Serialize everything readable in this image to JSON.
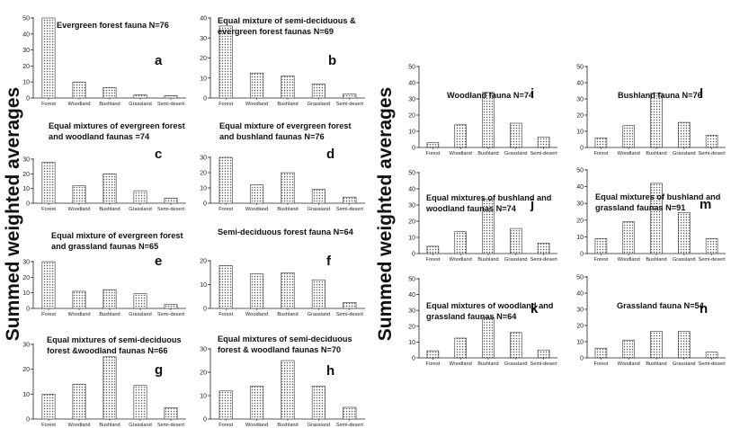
{
  "ylabel_left": "Summed weighted averages",
  "ylabel_right": "Summed weighted averages",
  "categories": [
    "Forest",
    "Woodland",
    "Bushland",
    "Grassland",
    "Semi-desert"
  ],
  "chart_data": [
    {
      "type": "bar",
      "panel": "a",
      "title": [
        "Evergreen forest fauna N=76"
      ],
      "categories": [
        "Forest",
        "Woodland",
        "Bushland",
        "Grassland",
        "Semi-desert"
      ],
      "values": [
        50,
        10,
        6.5,
        2,
        1.5
      ],
      "ylim": [
        0,
        50
      ],
      "yticks": [
        0,
        10,
        20,
        30,
        40,
        50
      ]
    },
    {
      "type": "bar",
      "panel": "b",
      "title": [
        "Equal mixture of semi-deciduous &",
        "evergreen forest faunas N=69"
      ],
      "categories": [
        "Forest",
        "Woodland",
        "Bushland",
        "Grassland",
        "Semi-desert"
      ],
      "values": [
        36,
        12.5,
        11,
        7,
        2
      ],
      "ylim": [
        0,
        40
      ],
      "yticks": [
        0,
        10,
        20,
        30,
        40
      ]
    },
    {
      "type": "bar",
      "panel": "c",
      "title": [
        "Equal mixtures of evergreen  forest",
        "and woodland faunas =74"
      ],
      "categories": [
        "Forest",
        "Woodland",
        "Bushland",
        "Grassland",
        "Semi-desert"
      ],
      "values": [
        28,
        12,
        20,
        8.5,
        3.5
      ],
      "ylim": [
        0,
        30
      ],
      "yticks": [
        0,
        10,
        20,
        30
      ]
    },
    {
      "type": "bar",
      "panel": "d",
      "title": [
        "Equal mixture of evergreen forest",
        "and bushland faunas N=76"
      ],
      "categories": [
        "Forest",
        "Woodland",
        "Bushland",
        "Grassland",
        "Semi-desert"
      ],
      "values": [
        30,
        12,
        20,
        9,
        4
      ],
      "ylim": [
        0,
        30
      ],
      "yticks": [
        0,
        10,
        20,
        30
      ]
    },
    {
      "type": "bar",
      "panel": "e",
      "title": [
        "Equal mixture of evergreen forest",
        "and grassland faunas N=65"
      ],
      "categories": [
        "Forest",
        "Woodland",
        "Bushland",
        "Grassland",
        "Semi-desert"
      ],
      "values": [
        30,
        11,
        12,
        9.5,
        2.5
      ],
      "ylim": [
        0,
        30
      ],
      "yticks": [
        0,
        10,
        20,
        30
      ]
    },
    {
      "type": "bar",
      "panel": "f",
      "title": [
        "Semi-deciduous forest fauna N=64"
      ],
      "categories": [
        "Forest",
        "Woodland",
        "Bushland",
        "Grassland",
        "Semi-desert"
      ],
      "values": [
        18,
        14.5,
        15,
        12,
        2.5
      ],
      "ylim": [
        0,
        20
      ],
      "yticks": [
        0,
        10,
        20
      ]
    },
    {
      "type": "bar",
      "panel": "g",
      "title": [
        "Equal mixtures of semi-deciduous",
        "forest &woodland faunas N=66"
      ],
      "categories": [
        "Forest",
        "Woodland",
        "Bushland",
        "Grassland",
        "Semi-desert"
      ],
      "values": [
        10,
        14,
        25,
        13.5,
        4.5
      ],
      "ylim": [
        0,
        30
      ],
      "yticks": [
        0,
        10,
        20,
        30
      ]
    },
    {
      "type": "bar",
      "panel": "h",
      "title": [
        "Equal mixtures of semi-deciduous",
        "forest & woodland faunas N=70"
      ],
      "categories": [
        "Forest",
        "Woodland",
        "Bushland",
        "Grassland",
        "Semi-desert"
      ],
      "values": [
        12,
        14,
        25,
        14,
        5
      ],
      "ylim": [
        0,
        30
      ],
      "yticks": [
        0,
        10,
        20,
        30
      ]
    },
    {
      "type": "bar",
      "panel": "i",
      "title": [
        "Woodland fauna N=74"
      ],
      "categories": [
        "Forest",
        "Woodland",
        "Bushland",
        "Grassland",
        "Semi-desert"
      ],
      "values": [
        3,
        14,
        34,
        15,
        6.5
      ],
      "ylim": [
        0,
        50
      ],
      "yticks": [
        0,
        10,
        20,
        30,
        40,
        50
      ]
    },
    {
      "type": "bar",
      "panel": "l",
      "title": [
        "Bushland fauna N=76"
      ],
      "categories": [
        "Forest",
        "Woodland",
        "Bushland",
        "Grassland",
        "Semi-desert"
      ],
      "values": [
        6,
        13.5,
        33.5,
        15.5,
        7.5
      ],
      "ylim": [
        0,
        50
      ],
      "yticks": [
        0,
        10,
        20,
        30,
        40,
        50
      ]
    },
    {
      "type": "bar",
      "panel": "j",
      "title": [
        "Equal mixtures of bushland and",
        "woodland faunas N=74"
      ],
      "categories": [
        "Forest",
        "Woodland",
        "Bushland",
        "Grassland",
        "Semi-desert"
      ],
      "values": [
        4.5,
        13.5,
        33.5,
        15.5,
        6.5
      ],
      "ylim": [
        0,
        50
      ],
      "yticks": [
        0,
        10,
        20,
        30,
        40,
        50
      ]
    },
    {
      "type": "bar",
      "panel": "m",
      "title": [
        "Equal mixtures of bushland and",
        "grassland faunas N=91"
      ],
      "categories": [
        "Forest",
        "Woodland",
        "Bushland",
        "Grassland",
        "Semi-desert"
      ],
      "values": [
        9,
        19,
        42,
        24.5,
        9
      ],
      "ylim": [
        0,
        50
      ],
      "yticks": [
        0,
        10,
        20,
        30,
        40,
        50
      ]
    },
    {
      "type": "bar",
      "panel": "k",
      "title": [
        "Equal mixtures of woodland and",
        "grassland faunas N=64"
      ],
      "categories": [
        "Forest",
        "Woodland",
        "Bushland",
        "Grassland",
        "Semi-desert"
      ],
      "values": [
        4.5,
        12.5,
        25.5,
        16,
        5
      ],
      "ylim": [
        0,
        50
      ],
      "yticks": [
        0,
        10,
        20,
        30,
        40,
        50
      ]
    },
    {
      "type": "bar",
      "panel": "n",
      "title": [
        "Grassland fauna N=54"
      ],
      "categories": [
        "Forest",
        "Woodland",
        "Bushland",
        "Grassland",
        "Semi-desert"
      ],
      "values": [
        6,
        11,
        16.5,
        16.5,
        3.5
      ],
      "ylim": [
        0,
        50
      ],
      "yticks": [
        0,
        10,
        20,
        30,
        40,
        50
      ]
    }
  ]
}
